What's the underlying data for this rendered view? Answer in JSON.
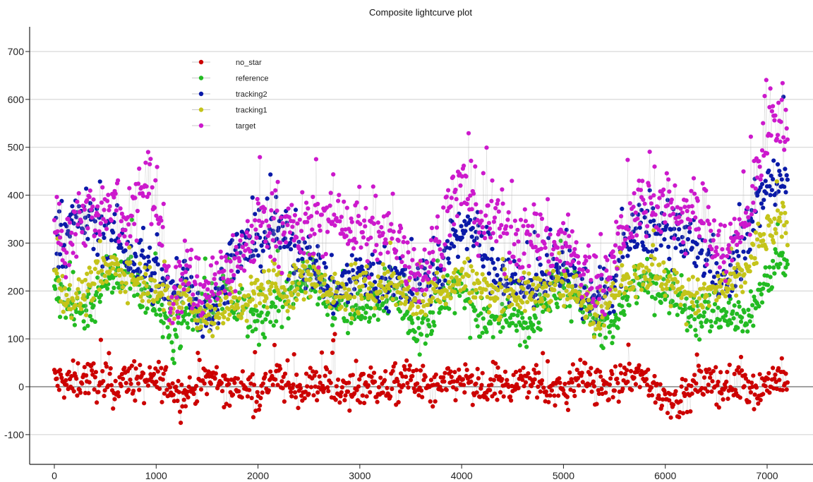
{
  "chart_data": {
    "type": "scatter",
    "title": "Composite lightcurve plot",
    "xlabel": "",
    "ylabel": "",
    "xlim": [
      -250,
      7500
    ],
    "ylim": [
      -160,
      760
    ],
    "x_ticks": [
      0,
      1000,
      2000,
      3000,
      4000,
      5000,
      6000,
      7000
    ],
    "y_ticks": [
      -100,
      0,
      100,
      200,
      300,
      400,
      500,
      600,
      700
    ],
    "grid": "horizontal",
    "legend_position": "top-left",
    "x_range": [
      0,
      7200
    ],
    "series": [
      {
        "name": "no_star",
        "color": "#cc0000",
        "y": [
          15,
          5,
          20,
          10,
          -5,
          20,
          5,
          15,
          0,
          -20,
          10,
          20,
          -10,
          5,
          -15,
          25,
          0,
          -5,
          10,
          5,
          -15,
          10,
          0,
          -5,
          20,
          5,
          -10,
          10,
          15,
          -20,
          5,
          0,
          15,
          10,
          -10,
          -5,
          20,
          5,
          0,
          10,
          25,
          -5,
          -25,
          -30,
          10,
          5,
          0,
          15,
          -10,
          20,
          10
        ]
      },
      {
        "name": "reference",
        "color": "#22bb22",
        "y": [
          200,
          170,
          160,
          190,
          230,
          240,
          200,
          180,
          100,
          150,
          160,
          195,
          200,
          150,
          130,
          170,
          200,
          230,
          210,
          180,
          150,
          160,
          200,
          200,
          150,
          120,
          160,
          200,
          200,
          140,
          130,
          150,
          110,
          150,
          200,
          200,
          190,
          140,
          110,
          180,
          220,
          210,
          200,
          170,
          140,
          160,
          150,
          140,
          180,
          250,
          270
        ]
      },
      {
        "name": "tracking2",
        "color": "#0a1aa8",
        "y": [
          300,
          330,
          360,
          320,
          330,
          270,
          260,
          230,
          180,
          240,
          150,
          160,
          270,
          290,
          300,
          330,
          300,
          270,
          240,
          200,
          220,
          240,
          220,
          220,
          210,
          220,
          230,
          290,
          340,
          300,
          250,
          230,
          200,
          230,
          230,
          250,
          200,
          180,
          200,
          300,
          320,
          330,
          310,
          300,
          290,
          250,
          220,
          300,
          390,
          420,
          460
        ]
      },
      {
        "name": "tracking1",
        "color": "#c4c41a",
        "y": [
          240,
          180,
          190,
          230,
          250,
          230,
          220,
          220,
          160,
          200,
          140,
          150,
          170,
          180,
          200,
          220,
          190,
          230,
          230,
          200,
          180,
          200,
          210,
          220,
          190,
          170,
          200,
          210,
          230,
          210,
          190,
          200,
          190,
          200,
          210,
          200,
          190,
          150,
          190,
          230,
          240,
          240,
          210,
          200,
          180,
          200,
          210,
          230,
          300,
          330,
          350
        ]
      },
      {
        "name": "target",
        "color": "#cc19cc",
        "y": [
          330,
          300,
          370,
          340,
          380,
          320,
          450,
          390,
          180,
          240,
          200,
          220,
          250,
          280,
          350,
          340,
          320,
          330,
          340,
          360,
          340,
          320,
          300,
          320,
          280,
          230,
          290,
          380,
          420,
          350,
          340,
          330,
          300,
          320,
          290,
          300,
          240,
          220,
          240,
          350,
          380,
          390,
          370,
          360,
          360,
          320,
          280,
          330,
          460,
          560,
          520
        ]
      }
    ]
  }
}
